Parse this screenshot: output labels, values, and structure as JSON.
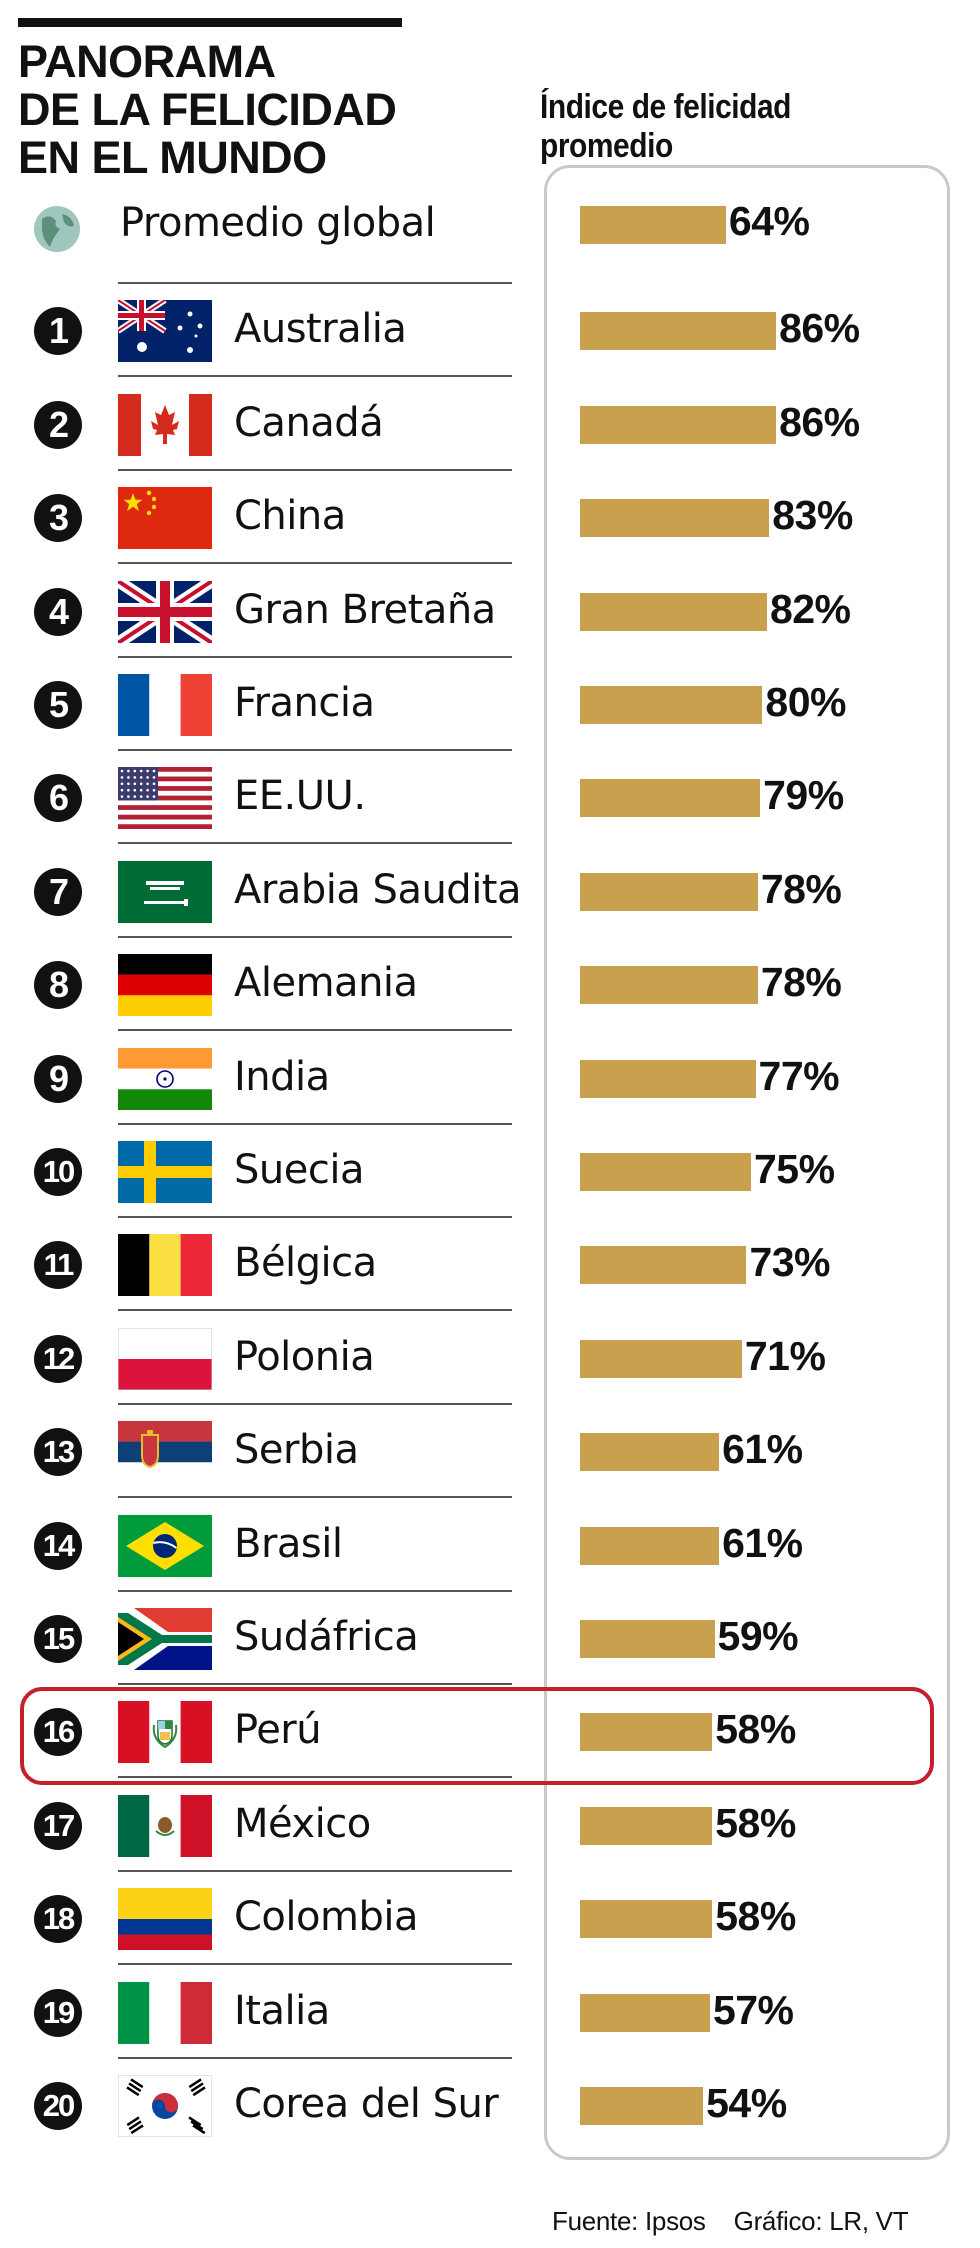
{
  "title": {
    "line1": "PANORAMA",
    "line2": "DE LA FELICIDAD",
    "line3": "EN EL MUNDO"
  },
  "footer": {
    "source": "Fuente: Ipsos",
    "graphic": "Gráfico: LR, VT"
  },
  "colors": {
    "bar": "#c9a04e",
    "highlight": "#c4202c",
    "panel_border": "#c9c9c9",
    "badge": "#111111"
  },
  "highlighted_country": "Perú",
  "chart_data": {
    "type": "bar",
    "orientation": "horizontal",
    "title": "PANORAMA DE LA FELICIDAD EN EL MUNDO",
    "value_label": "Índice de felicidad promedio",
    "unit": "%",
    "xlim": [
      0,
      100
    ],
    "global_average": {
      "label": "Promedio global",
      "value": 64,
      "value_label": "64%"
    },
    "rows": [
      {
        "rank": "1",
        "country": "Australia",
        "flag": "australia-flag",
        "value": 86,
        "value_label": "86%"
      },
      {
        "rank": "2",
        "country": "Canadá",
        "flag": "canada-flag",
        "value": 86,
        "value_label": "86%"
      },
      {
        "rank": "3",
        "country": "China",
        "flag": "china-flag",
        "value": 83,
        "value_label": "83%"
      },
      {
        "rank": "4",
        "country": "Gran Bretaña",
        "flag": "uk-flag",
        "value": 82,
        "value_label": "82%"
      },
      {
        "rank": "5",
        "country": "Francia",
        "flag": "france-flag",
        "value": 80,
        "value_label": "80%"
      },
      {
        "rank": "6",
        "country": "EE.UU.",
        "flag": "usa-flag",
        "value": 79,
        "value_label": "79%"
      },
      {
        "rank": "7",
        "country": "Arabia Saudita",
        "flag": "saudi-arabia-flag",
        "value": 78,
        "value_label": "78%"
      },
      {
        "rank": "8",
        "country": "Alemania",
        "flag": "germany-flag",
        "value": 78,
        "value_label": "78%"
      },
      {
        "rank": "9",
        "country": "India",
        "flag": "india-flag",
        "value": 77,
        "value_label": "77%"
      },
      {
        "rank": "10",
        "country": "Suecia",
        "flag": "sweden-flag",
        "value": 75,
        "value_label": "75%"
      },
      {
        "rank": "11",
        "country": "Bélgica",
        "flag": "belgium-flag",
        "value": 73,
        "value_label": "73%"
      },
      {
        "rank": "12",
        "country": "Polonia",
        "flag": "poland-flag",
        "value": 71,
        "value_label": "71%"
      },
      {
        "rank": "13",
        "country": "Serbia",
        "flag": "serbia-flag",
        "value": 61,
        "value_label": "61%"
      },
      {
        "rank": "14",
        "country": "Brasil",
        "flag": "brazil-flag",
        "value": 61,
        "value_label": "61%"
      },
      {
        "rank": "15",
        "country": "Sudáfrica",
        "flag": "south-africa-flag",
        "value": 59,
        "value_label": "59%"
      },
      {
        "rank": "16",
        "country": "Perú",
        "flag": "peru-flag",
        "value": 58,
        "value_label": "58%"
      },
      {
        "rank": "17",
        "country": "México",
        "flag": "mexico-flag",
        "value": 58,
        "value_label": "58%"
      },
      {
        "rank": "18",
        "country": "Colombia",
        "flag": "colombia-flag",
        "value": 58,
        "value_label": "58%"
      },
      {
        "rank": "19",
        "country": "Italia",
        "flag": "italy-flag",
        "value": 57,
        "value_label": "57%"
      },
      {
        "rank": "20",
        "country": "Corea del Sur",
        "flag": "south-korea-flag",
        "value": 54,
        "value_label": "54%"
      }
    ]
  }
}
